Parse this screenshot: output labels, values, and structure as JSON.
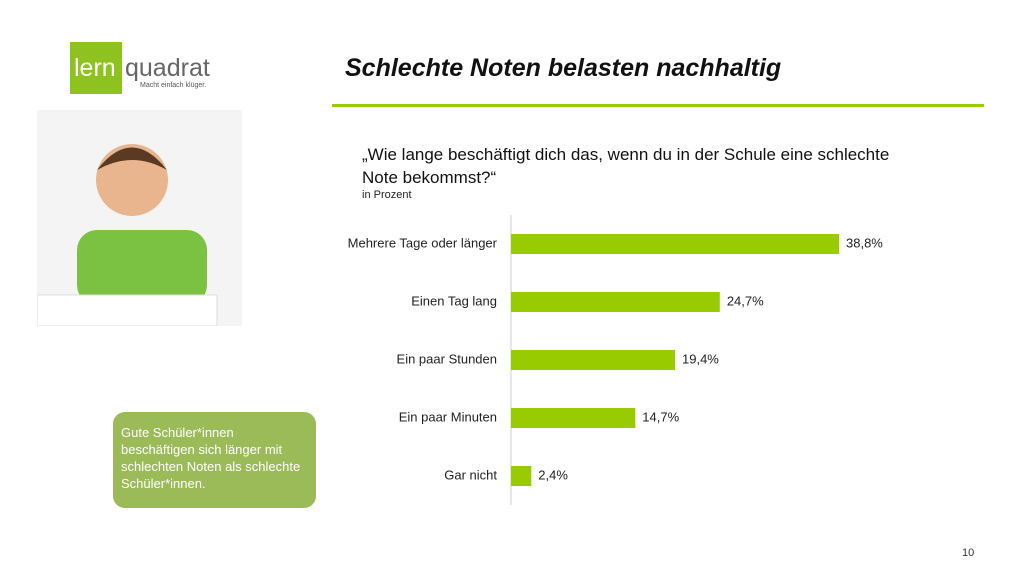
{
  "header": {
    "logo_left": "lern",
    "logo_right": "quadrat",
    "tagline": "Macht einfach klüger.",
    "title": "Schlechte Noten belasten nachhaltig"
  },
  "callout": "Gute Schüler*innen beschäftigen sich länger mit schlechten Noten als schlechte Schüler*innen.",
  "page_number": "10",
  "chart_data": {
    "type": "bar",
    "orientation": "horizontal",
    "title": "„Wie lange beschäftigt dich das, wenn du in der Schule eine schlechte Note bekommst?“",
    "subtitle": "in Prozent",
    "categories": [
      "Mehrere Tage oder länger",
      "Einen Tag lang",
      "Ein paar Stunden",
      "Ein paar Minuten",
      "Gar nicht"
    ],
    "values": [
      38.8,
      24.7,
      19.4,
      14.7,
      2.4
    ],
    "value_labels": [
      "38,8%",
      "24,7%",
      "19,4%",
      "14,7%",
      "2,4%"
    ],
    "color": "#99cc00"
  }
}
